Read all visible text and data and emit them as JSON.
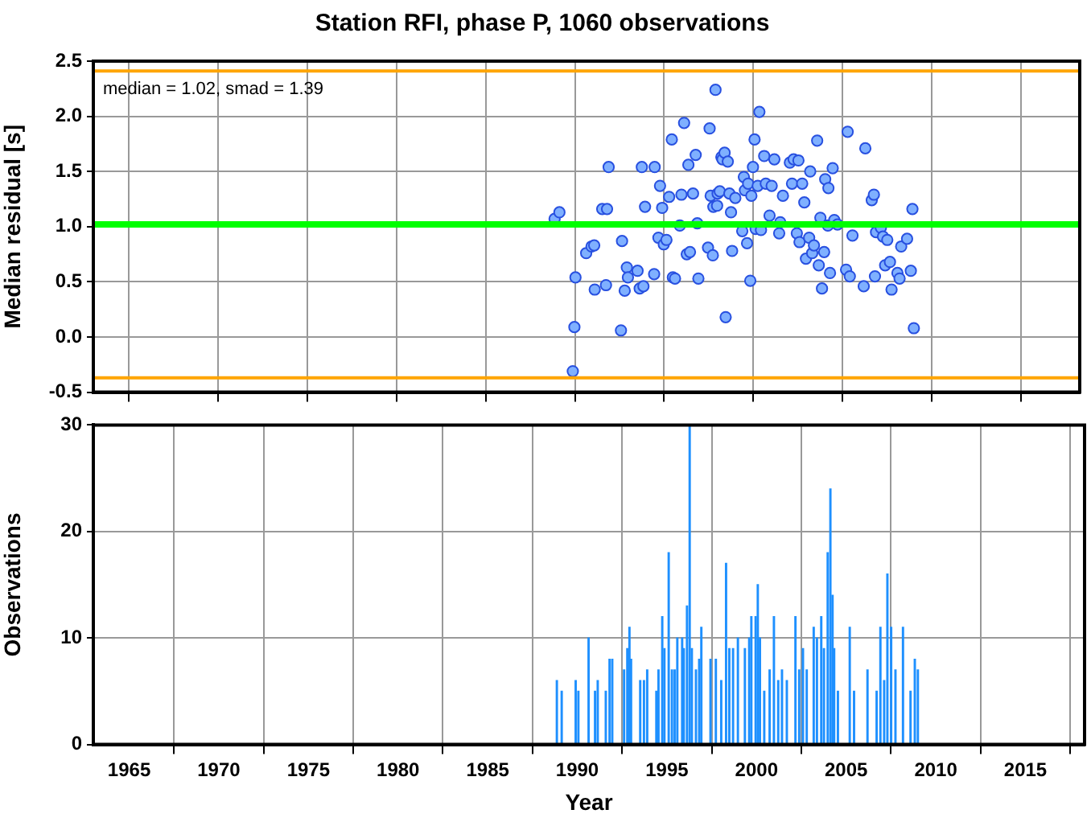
{
  "chart_data": [
    {
      "type": "scatter",
      "title": "Station RFI, phase P, 1060 observations",
      "ylabel": "Median residual [s]",
      "xlim": [
        1963,
        2018.3
      ],
      "xticks": [
        1965,
        1970,
        1975,
        1980,
        1985,
        1990,
        1995,
        2000,
        2005,
        2010,
        2015
      ],
      "ylim": [
        -0.5,
        2.5
      ],
      "yticks": [
        {
          "value": -0.5,
          "label": "-0.5"
        },
        {
          "value": 0,
          "label": "0.0"
        },
        {
          "value": 0.5,
          "label": "0.5"
        },
        {
          "value": 1,
          "label": "1.0"
        },
        {
          "value": 1.5,
          "label": "1.5"
        },
        {
          "value": 2,
          "label": "2.0"
        },
        {
          "value": 2.5,
          "label": "2.5"
        }
      ],
      "grid": true,
      "tick_labels": "y",
      "marker": "circle",
      "annotations": [
        "median = 1.02, smad = 1.39"
      ],
      "ref_lines": [
        {
          "axis": "y",
          "value": 2.41,
          "color": "#ffa500"
        },
        {
          "axis": "y",
          "value": 1.02,
          "color": "#00ff00"
        },
        {
          "axis": "y",
          "value": -0.37,
          "color": "#ffa500"
        }
      ],
      "series": [
        {
          "color": "#7fb0ff",
          "x": [
            1988.86,
            1989.13,
            1990.03,
            1989.97,
            1989.88,
            1990.63,
            1990.93,
            1991.08,
            1991.11,
            1991.53,
            1991.8,
            1991.74,
            1991.89,
            1992.58,
            1992.64,
            1992.79,
            1992.91,
            1992.97,
            1993.51,
            1993.63,
            1993.84,
            1993.75,
            1993.93,
            1994.47,
            1994.44,
            1994.77,
            1994.68,
            1994.89,
            1994.98,
            1995.13,
            1995.28,
            1995.43,
            1995.49,
            1995.61,
            1995.88,
            1995.97,
            1996.12,
            1996.27,
            1996.36,
            1996.45,
            1996.62,
            1996.77,
            1996.86,
            1996.92,
            1997.46,
            1997.55,
            1997.61,
            1997.73,
            1997.76,
            1997.88,
            1997.97,
            1998.0,
            1998.12,
            1998.21,
            1998.27,
            1998.39,
            1998.45,
            1998.57,
            1998.66,
            1998.75,
            1998.81,
            1998.99,
            1999.38,
            1999.47,
            1999.53,
            1999.65,
            1999.71,
            1999.83,
            1999.89,
            1999.98,
            2000.07,
            2000.13,
            2000.25,
            2000.34,
            2000.43,
            2000.61,
            2000.7,
            2000.91,
            2001.03,
            2001.18,
            2001.45,
            2001.51,
            2001.66,
            2002.05,
            2002.17,
            2002.26,
            2002.44,
            2002.53,
            2002.59,
            2002.74,
            2002.86,
            2002.95,
            2003.13,
            2003.19,
            2003.3,
            2003.4,
            2003.58,
            2003.67,
            2003.76,
            2003.85,
            2003.97,
            2004.03,
            2004.18,
            2004.21,
            2004.3,
            2004.45,
            2004.54,
            2004.72,
            2005.2,
            2005.29,
            2005.41,
            2005.56,
            2006.19,
            2006.28,
            2006.64,
            2006.76,
            2006.82,
            2006.88,
            2007.15,
            2007.27,
            2007.39,
            2007.51,
            2007.66,
            2007.75,
            2008.08,
            2008.2,
            2008.29,
            2008.62,
            2008.83,
            2008.92,
            2009.0
          ],
          "values": [
            1.07,
            1.13,
            0.54,
            0.09,
            -0.31,
            0.76,
            0.82,
            0.83,
            0.43,
            1.16,
            1.16,
            0.47,
            1.54,
            0.06,
            0.87,
            0.42,
            0.63,
            0.54,
            0.6,
            0.44,
            0.46,
            1.54,
            1.18,
            1.54,
            0.57,
            1.37,
            0.9,
            1.17,
            0.84,
            0.88,
            1.27,
            1.79,
            0.54,
            0.53,
            1.01,
            1.29,
            1.94,
            0.75,
            1.56,
            0.77,
            1.3,
            1.65,
            1.03,
            0.53,
            0.81,
            1.89,
            1.28,
            0.74,
            1.18,
            2.24,
            1.19,
            1.3,
            1.32,
            1.63,
            1.61,
            1.67,
            0.18,
            1.59,
            1.3,
            1.13,
            0.78,
            1.26,
            0.96,
            1.45,
            1.33,
            0.85,
            1.39,
            0.51,
            1.28,
            1.54,
            1.79,
            0.98,
            1.37,
            2.04,
            0.97,
            1.64,
            1.39,
            1.1,
            1.37,
            1.61,
            0.94,
            1.04,
            1.28,
            1.58,
            1.39,
            1.61,
            0.94,
            1.6,
            0.86,
            1.39,
            1.22,
            0.71,
            0.9,
            1.5,
            0.76,
            0.83,
            1.78,
            0.65,
            1.08,
            0.44,
            0.77,
            1.43,
            1.01,
            1.35,
            0.58,
            1.53,
            1.06,
            1.02,
            0.61,
            1.86,
            0.55,
            0.92,
            0.46,
            1.71,
            1.24,
            1.29,
            0.55,
            0.95,
            0.99,
            0.91,
            0.65,
            0.88,
            0.68,
            0.43,
            0.58,
            0.53,
            0.82,
            0.89,
            0.6,
            1.16,
            0.08
          ]
        }
      ]
    },
    {
      "type": "bar",
      "xlabel": "Year",
      "ylabel": "Observations",
      "xlim": [
        1963,
        2018.3
      ],
      "xticks": [
        1965,
        1970,
        1975,
        1980,
        1985,
        1990,
        1995,
        2000,
        2005,
        2010,
        2015
      ],
      "ylim": [
        0,
        30
      ],
      "yticks": [
        0,
        10,
        20,
        30
      ],
      "grid": true,
      "series": [
        {
          "color": "#1e90ff",
          "x": [
            1988.86,
            1989.13,
            1989.91,
            1990.06,
            1990.63,
            1990.99,
            1991.14,
            1991.59,
            1991.8,
            1991.95,
            1992.61,
            1992.79,
            1992.91,
            1993.0,
            1993.51,
            1993.72,
            1993.9,
            1994.41,
            1994.53,
            1994.74,
            1994.86,
            1995.1,
            1995.28,
            1995.43,
            1995.58,
            1995.85,
            1995.94,
            1996.12,
            1996.27,
            1996.39,
            1996.62,
            1996.8,
            1996.92,
            1997.43,
            1997.73,
            1998.03,
            1998.3,
            1998.48,
            1998.69,
            1998.96,
            1999.35,
            1999.59,
            1999.71,
            1999.95,
            2000.07,
            2000.19,
            2000.43,
            2000.73,
            2000.97,
            2001.21,
            2001.42,
            2001.69,
            2002.17,
            2002.38,
            2002.59,
            2002.8,
            2003.19,
            2003.37,
            2003.61,
            2003.76,
            2003.97,
            2004.12,
            2004.24,
            2004.33,
            2004.54,
            2005.2,
            2005.44,
            2006.19,
            2006.7,
            2006.91,
            2007.12,
            2007.3,
            2007.51,
            2007.75,
            2008.17,
            2008.59,
            2008.83,
            2009.0
          ],
          "values": [
            6,
            5,
            6,
            5,
            10,
            5,
            6,
            5,
            8,
            8,
            7,
            9,
            11,
            8,
            6,
            6,
            7,
            5,
            7,
            12,
            9,
            18,
            7,
            7,
            10,
            10,
            9,
            13,
            30,
            9,
            7,
            8,
            11,
            8,
            8,
            6,
            17,
            9,
            9,
            10,
            9,
            10,
            12,
            12,
            15,
            10,
            5,
            7,
            12,
            6,
            7,
            6,
            12,
            7,
            9,
            7,
            11,
            10,
            12,
            9,
            18,
            24,
            14,
            9,
            5,
            11,
            5,
            7,
            5,
            11,
            6,
            16,
            11,
            7,
            11,
            5,
            8,
            7
          ]
        }
      ]
    }
  ]
}
